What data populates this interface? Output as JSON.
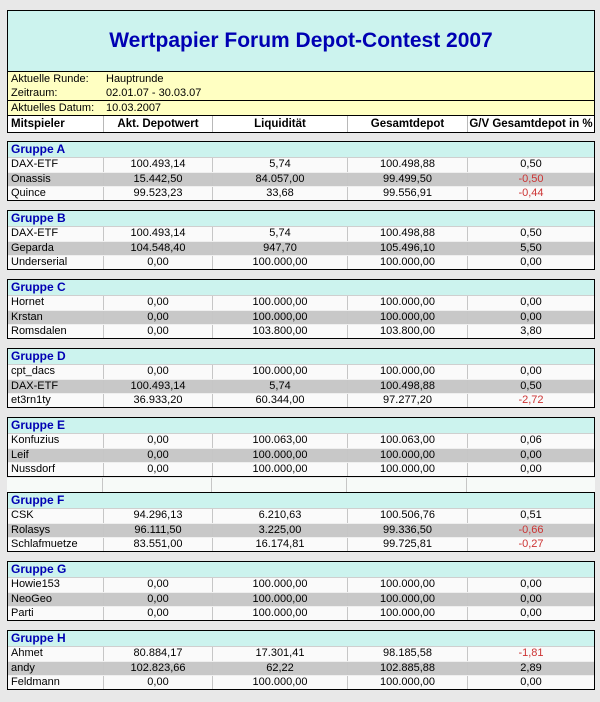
{
  "title": "Wertpapier Forum Depot-Contest 2007",
  "info": {
    "rows": [
      {
        "label": "Aktuelle Runde:",
        "value": "Hauptrunde"
      },
      {
        "label": "Zeitraum:",
        "value": "02.01.07 - 30.03.07"
      },
      {
        "label": "Aktuelles Datum:",
        "value": "10.03.2007"
      }
    ]
  },
  "columns": [
    "Mitspieler",
    "Akt. Depotwert",
    "Liquidität",
    "Gesamtdepot",
    "G/V Gesamtdepot in %"
  ],
  "groups": [
    {
      "name": "Gruppe A",
      "rows": [
        {
          "player": "DAX-ETF",
          "values": [
            "100.493,14",
            "5,74",
            "100.498,88",
            "0,50"
          ]
        },
        {
          "player": "Onassis",
          "values": [
            "15.442,50",
            "84.057,00",
            "99.499,50",
            "-0,50"
          ]
        },
        {
          "player": "Quince",
          "values": [
            "99.523,23",
            "33,68",
            "99.556,91",
            "-0,44"
          ]
        }
      ]
    },
    {
      "name": "Gruppe B",
      "rows": [
        {
          "player": "DAX-ETF",
          "values": [
            "100.493,14",
            "5,74",
            "100.498,88",
            "0,50"
          ]
        },
        {
          "player": "Geparda",
          "values": [
            "104.548,40",
            "947,70",
            "105.496,10",
            "5,50"
          ]
        },
        {
          "player": "Underserial",
          "values": [
            "0,00",
            "100.000,00",
            "100.000,00",
            "0,00"
          ]
        }
      ]
    },
    {
      "name": "Gruppe C",
      "rows": [
        {
          "player": "Hornet",
          "values": [
            "0,00",
            "100.000,00",
            "100.000,00",
            "0,00"
          ]
        },
        {
          "player": "Krstan",
          "values": [
            "0,00",
            "100.000,00",
            "100.000,00",
            "0,00"
          ]
        },
        {
          "player": "Romsdalen",
          "values": [
            "0,00",
            "103.800,00",
            "103.800,00",
            "3,80"
          ]
        }
      ]
    },
    {
      "name": "Gruppe D",
      "rows": [
        {
          "player": "cpt_dacs",
          "values": [
            "0,00",
            "100.000,00",
            "100.000,00",
            "0,00"
          ]
        },
        {
          "player": "DAX-ETF",
          "values": [
            "100.493,14",
            "5,74",
            "100.498,88",
            "0,50"
          ]
        },
        {
          "player": "et3rn1ty",
          "values": [
            "36.933,20",
            "60.344,00",
            "97.277,20",
            "-2,72"
          ]
        }
      ]
    },
    {
      "name": "Gruppe E",
      "rows": [
        {
          "player": "Konfuzius",
          "values": [
            "0,00",
            "100.063,00",
            "100.063,00",
            "0,06"
          ]
        },
        {
          "player": "Leif",
          "values": [
            "0,00",
            "100.000,00",
            "100.000,00",
            "0,00"
          ]
        },
        {
          "player": "Nussdorf",
          "values": [
            "0,00",
            "100.000,00",
            "100.000,00",
            "0,00"
          ]
        }
      ]
    },
    {
      "name": "Gruppe F",
      "grid_gap_before": true,
      "rows": [
        {
          "player": "CSK",
          "values": [
            "94.296,13",
            "6.210,63",
            "100.506,76",
            "0,51"
          ]
        },
        {
          "player": "Rolasys",
          "values": [
            "96.111,50",
            "3.225,00",
            "99.336,50",
            "-0,66"
          ]
        },
        {
          "player": "Schlafmuetze",
          "values": [
            "83.551,00",
            "16.174,81",
            "99.725,81",
            "-0,27"
          ]
        }
      ]
    },
    {
      "name": "Gruppe G",
      "rows": [
        {
          "player": "Howie153",
          "values": [
            "0,00",
            "100.000,00",
            "100.000,00",
            "0,00"
          ]
        },
        {
          "player": "NeoGeo",
          "values": [
            "0,00",
            "100.000,00",
            "100.000,00",
            "0,00"
          ]
        },
        {
          "player": "Parti",
          "values": [
            "0,00",
            "100.000,00",
            "100.000,00",
            "0,00"
          ]
        }
      ]
    },
    {
      "name": "Gruppe H",
      "rows": [
        {
          "player": "Ahmet",
          "values": [
            "80.884,17",
            "17.301,41",
            "98.185,58",
            "-1,81"
          ]
        },
        {
          "player": "andy",
          "values": [
            "102.823,66",
            "62,22",
            "102.885,88",
            "2,89"
          ]
        },
        {
          "player": "Feldmann",
          "values": [
            "0,00",
            "100.000,00",
            "100.000,00",
            "0,00"
          ]
        }
      ]
    }
  ],
  "colors": {
    "title_text": "#0000b3",
    "banner_bg": "#ccf3ee",
    "info_bg": "#ffffc2",
    "row_alt_bg": "#c8c8c8",
    "negative_value": "#cc3333",
    "page_bg": "#e8e8e8"
  }
}
